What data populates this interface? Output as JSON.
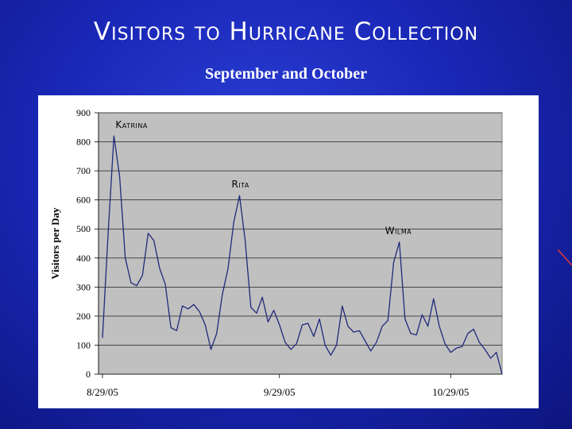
{
  "slide": {
    "title": "Visitors to Hurricane Collection",
    "subtitle": "September and October"
  },
  "colors": {
    "background": "#1a28b8",
    "plot_area": "#c0c0c0",
    "line": "#1f2a7a",
    "panel": "#ffffff"
  },
  "chart_data": {
    "type": "line",
    "title": "",
    "ylabel": "Visitors per Day",
    "xlabel": "",
    "ylim": [
      0,
      900
    ],
    "yticks": [
      0,
      100,
      200,
      300,
      400,
      500,
      600,
      700,
      800,
      900
    ],
    "xticks": [
      {
        "day": 0,
        "label": "8/29/05"
      },
      {
        "day": 31,
        "label": "9/29/05"
      },
      {
        "day": 61,
        "label": "10/29/05"
      }
    ],
    "grid": true,
    "series": [
      {
        "values": [
          125,
          490,
          820,
          680,
          400,
          315,
          305,
          340,
          485,
          460,
          365,
          310,
          160,
          150,
          235,
          225,
          240,
          215,
          170,
          85,
          140,
          275,
          365,
          525,
          615,
          460,
          230,
          210,
          265,
          180,
          220,
          170,
          110,
          85,
          105,
          170,
          175,
          130,
          190,
          100,
          65,
          100,
          235,
          165,
          145,
          150,
          115,
          80,
          110,
          165,
          185,
          385,
          455,
          190,
          140,
          135,
          205,
          165,
          260,
          165,
          105,
          75,
          90,
          95,
          140,
          155,
          110,
          85,
          55,
          75,
          0
        ]
      }
    ],
    "annotations": [
      {
        "text": "Katrina",
        "day": 2,
        "value": 820
      },
      {
        "text": "Rita",
        "day": 24,
        "value": 615
      },
      {
        "text": "Wilma",
        "day": 52,
        "value": 455
      }
    ]
  }
}
